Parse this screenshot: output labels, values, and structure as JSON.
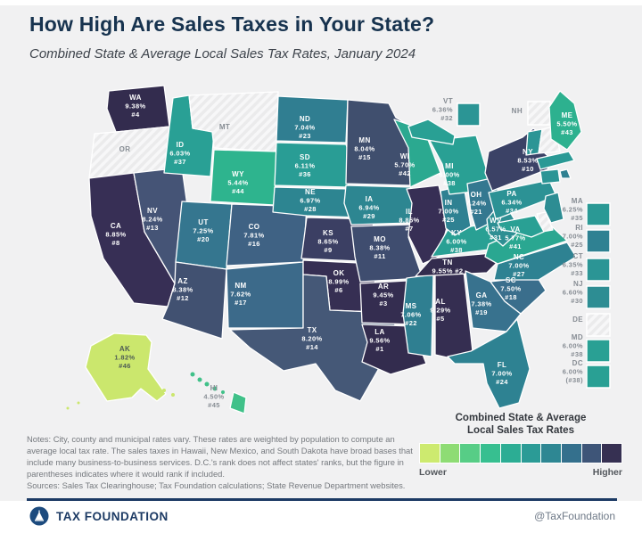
{
  "header": {
    "title": "How High Are Sales Taxes in Your State?",
    "subtitle": "Combined State & Average Local Sales Tax Rates, January 2024"
  },
  "chart_data": {
    "type": "choropleth",
    "title": "How High Are Sales Taxes in Your State?",
    "subtitle": "Combined State & Average Local Sales Tax Rates, January 2024",
    "value_label": "Combined state & average local sales tax rate",
    "states": [
      {
        "abbr": "WA",
        "rate": "9.38%",
        "rank": "#4",
        "color": "#332c4e"
      },
      {
        "abbr": "OR",
        "no_sales_tax": true
      },
      {
        "abbr": "CA",
        "rate": "8.85%",
        "rank": "#8",
        "color": "#372f55"
      },
      {
        "abbr": "NV",
        "rate": "8.24%",
        "rank": "#13",
        "color": "#455476"
      },
      {
        "abbr": "ID",
        "rate": "6.03%",
        "rank": "#37",
        "color": "#29a095"
      },
      {
        "abbr": "MT",
        "no_sales_tax": true
      },
      {
        "abbr": "WY",
        "rate": "5.44%",
        "rank": "#44",
        "color": "#2eb48e"
      },
      {
        "abbr": "UT",
        "rate": "7.25%",
        "rank": "#20",
        "color": "#35768f"
      },
      {
        "abbr": "CO",
        "rate": "7.81%",
        "rank": "#16",
        "color": "#3f6284"
      },
      {
        "abbr": "AZ",
        "rate": "8.38%",
        "rank": "#12",
        "color": "#415171"
      },
      {
        "abbr": "NM",
        "rate": "7.62%",
        "rank": "#17",
        "color": "#3c6a8a"
      },
      {
        "abbr": "ND",
        "rate": "7.04%",
        "rank": "#23",
        "color": "#307e91"
      },
      {
        "abbr": "SD",
        "rate": "6.11%",
        "rank": "#36",
        "color": "#299d95"
      },
      {
        "abbr": "NE",
        "rate": "6.97%",
        "rank": "#28",
        "color": "#2d8591"
      },
      {
        "abbr": "KS",
        "rate": "8.65%",
        "rank": "#9",
        "color": "#3b3f63"
      },
      {
        "abbr": "OK",
        "rate": "8.99%",
        "rank": "#6",
        "color": "#362f53"
      },
      {
        "abbr": "TX",
        "rate": "8.20%",
        "rank": "#14",
        "color": "#455877"
      },
      {
        "abbr": "MN",
        "rate": "8.04%",
        "rank": "#15",
        "color": "#404f6e"
      },
      {
        "abbr": "IA",
        "rate": "6.94%",
        "rank": "#29",
        "color": "#2d8691"
      },
      {
        "abbr": "MO",
        "rate": "8.38%",
        "rank": "#11",
        "color": "#3f4d6f"
      },
      {
        "abbr": "AR",
        "rate": "9.45%",
        "rank": "#3",
        "color": "#342d50"
      },
      {
        "abbr": "LA",
        "rate": "9.56%",
        "rank": "#1",
        "color": "#332c4e"
      },
      {
        "abbr": "WI",
        "rate": "5.70%",
        "rank": "#42",
        "color": "#2ba990"
      },
      {
        "abbr": "IL",
        "rate": "8.85%",
        "rank": "#7",
        "color": "#372f55"
      },
      {
        "abbr": "MS",
        "rate": "7.06%",
        "rank": "#22",
        "color": "#2f7f91"
      },
      {
        "abbr": "AL",
        "rate": "9.29%",
        "rank": "#5",
        "color": "#352e51"
      },
      {
        "abbr": "TN",
        "rate": "9.55%",
        "rank": "#2",
        "color": "#332c4e"
      },
      {
        "abbr": "KY",
        "rate": "6.00%",
        "rank": "#38",
        "color": "#29a094"
      },
      {
        "abbr": "IN",
        "rate": "7.00%",
        "rank": "#25",
        "color": "#2f8192"
      },
      {
        "abbr": "MI",
        "rate": "6.00%",
        "rank": "#38",
        "color": "#29a094"
      },
      {
        "abbr": "OH",
        "rate": "7.24%",
        "rank": "#21",
        "color": "#347890"
      },
      {
        "abbr": "GA",
        "rate": "7.38%",
        "rank": "#19",
        "color": "#38728e"
      },
      {
        "abbr": "FL",
        "rate": "7.00%",
        "rank": "#24",
        "color": "#2e8292"
      },
      {
        "abbr": "SC",
        "rate": "7.50%",
        "rank": "#18",
        "color": "#3a6e8c"
      },
      {
        "abbr": "NC",
        "rate": "7.00%",
        "rank": "#27",
        "color": "#2e8292"
      },
      {
        "abbr": "VA",
        "rate": "5.77%",
        "rank": "#41",
        "color": "#2aa791"
      },
      {
        "abbr": "WV",
        "rate": "6.57%",
        "rank": "#31",
        "color": "#2e8f93"
      },
      {
        "abbr": "PA",
        "rate": "6.34%",
        "rank": "#34",
        "color": "#2c9295"
      },
      {
        "abbr": "NY",
        "rate": "8.53%",
        "rank": "#10",
        "color": "#3b4266"
      },
      {
        "abbr": "VT",
        "rate": "6.36%",
        "rank": "#32",
        "color": "#2b9595"
      },
      {
        "abbr": "NH",
        "no_sales_tax": true
      },
      {
        "abbr": "ME",
        "rate": "5.50%",
        "rank": "#43",
        "color": "#2db18f"
      },
      {
        "abbr": "MA",
        "rate": "6.25%",
        "rank": "#35",
        "color": "#2a9995"
      },
      {
        "abbr": "RI",
        "rate": "7.00%",
        "rank": "#25",
        "color": "#2f8192"
      },
      {
        "abbr": "CT",
        "rate": "6.35%",
        "rank": "#33",
        "color": "#2b9595"
      },
      {
        "abbr": "NJ",
        "rate": "6.60%",
        "rank": "#30",
        "color": "#2d8d93"
      },
      {
        "abbr": "DE",
        "no_sales_tax": true
      },
      {
        "abbr": "MD",
        "rate": "6.00%",
        "rank": "#38",
        "color": "#29a094"
      },
      {
        "abbr": "DC",
        "rate": "6.00%",
        "rank": "(#38)",
        "color": "#29a094"
      },
      {
        "abbr": "AK",
        "rate": "1.82%",
        "rank": "#46",
        "color": "#cbe76d"
      },
      {
        "abbr": "HI",
        "rate": "4.50%",
        "rank": "#45",
        "color": "#40c189"
      }
    ]
  },
  "legend": {
    "title": "Combined State & Average\nLocal Sales Tax Rates",
    "lower": "Lower",
    "higher": "Higher",
    "colors": [
      "#cdea6f",
      "#8edc74",
      "#57cd86",
      "#37bf90",
      "#2cad94",
      "#2b9b96",
      "#2e8793",
      "#34708d",
      "#3e5578",
      "#363052"
    ]
  },
  "notes": "Notes: City, county and municipal rates vary. These rates are weighted by population to compute an average local tax rate. The sales taxes in Hawaii, New Mexico, and South Dakota have broad bases that include many business-to-business services. D.C.'s rank does not affect states' ranks, but the figure in parentheses indicates where it would rank if included.",
  "sources": "Sources: Sales Tax Clearinghouse; Tax Foundation calculations; State Revenue Department websites.",
  "footer": {
    "brand": "TAX FOUNDATION",
    "handle": "@TaxFoundation"
  }
}
